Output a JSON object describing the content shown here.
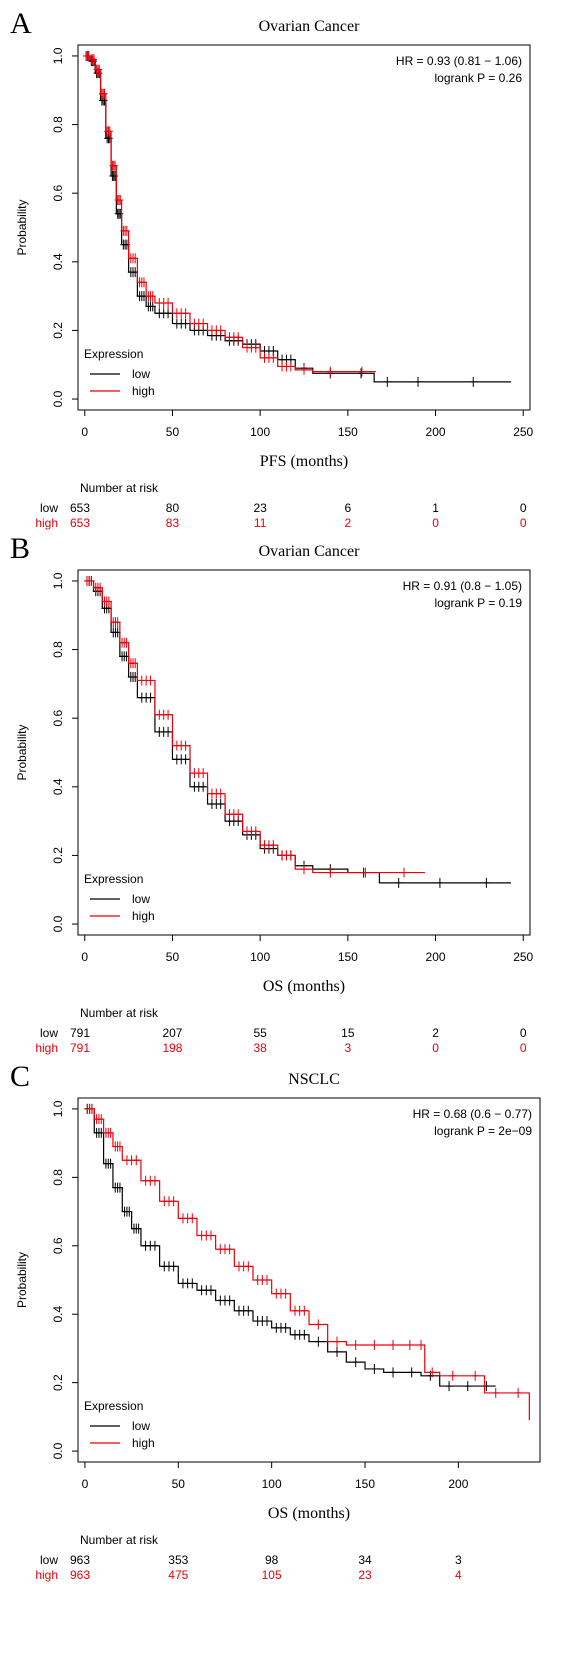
{
  "colors": {
    "low": "#000000",
    "high": "#e8000b"
  },
  "chart_data": [
    {
      "type": "line",
      "panel_label": "A",
      "title": "Ovarian Cancer",
      "xlabel": "PFS (months)",
      "ylabel": "Probability",
      "xlim": [
        0,
        250
      ],
      "ylim": [
        0,
        1
      ],
      "xticks": [
        "0",
        "50",
        "100",
        "150",
        "200",
        "250"
      ],
      "yticks": [
        "0.0",
        "0.2",
        "0.4",
        "0.6",
        "0.8",
        "1.0"
      ],
      "legend_title": "Expression",
      "legend_position": "bottom-left",
      "annotation": [
        "HR = 0.93 (0.81 − 1.06)",
        "logrank P = 0.26"
      ],
      "series": [
        {
          "name": "low",
          "x": [
            0,
            3,
            6,
            9,
            12,
            15,
            18,
            21,
            25,
            30,
            35,
            40,
            50,
            60,
            70,
            80,
            90,
            100,
            110,
            120,
            130,
            150,
            165,
            180,
            200,
            243
          ],
          "y": [
            1.0,
            0.985,
            0.95,
            0.87,
            0.76,
            0.65,
            0.54,
            0.45,
            0.37,
            0.3,
            0.27,
            0.25,
            0.22,
            0.2,
            0.185,
            0.17,
            0.16,
            0.14,
            0.115,
            0.09,
            0.075,
            0.075,
            0.05,
            0.05,
            0.05,
            0.05
          ]
        },
        {
          "name": "high",
          "x": [
            0,
            3,
            6,
            9,
            12,
            15,
            18,
            21,
            25,
            30,
            35,
            40,
            50,
            60,
            70,
            80,
            90,
            100,
            110,
            120,
            130,
            150,
            166
          ],
          "y": [
            1.0,
            0.99,
            0.96,
            0.89,
            0.78,
            0.68,
            0.58,
            0.49,
            0.41,
            0.34,
            0.3,
            0.28,
            0.25,
            0.22,
            0.2,
            0.18,
            0.15,
            0.12,
            0.095,
            0.085,
            0.08,
            0.08,
            0.08
          ]
        }
      ],
      "risk_table": {
        "title": "Number at risk",
        "low": [
          "653",
          "80",
          "23",
          "6",
          "1",
          "0"
        ],
        "high": [
          "653",
          "83",
          "11",
          "2",
          "0",
          "0"
        ]
      }
    },
    {
      "type": "line",
      "panel_label": "B",
      "title": "Ovarian Cancer",
      "xlabel": "OS (months)",
      "ylabel": "Probability",
      "xlim": [
        0,
        250
      ],
      "ylim": [
        0,
        1
      ],
      "xticks": [
        "0",
        "50",
        "100",
        "150",
        "200",
        "250"
      ],
      "yticks": [
        "0.0",
        "0.2",
        "0.4",
        "0.6",
        "0.8",
        "1.0"
      ],
      "legend_title": "Expression",
      "legend_position": "bottom-left",
      "annotation": [
        "HR = 0.91 (0.8 − 1.05)",
        "logrank P = 0.19"
      ],
      "series": [
        {
          "name": "low",
          "x": [
            0,
            5,
            10,
            15,
            20,
            25,
            30,
            40,
            50,
            60,
            70,
            80,
            90,
            100,
            110,
            120,
            130,
            150,
            168,
            190,
            215,
            243
          ],
          "y": [
            1.0,
            0.97,
            0.92,
            0.85,
            0.78,
            0.72,
            0.66,
            0.56,
            0.48,
            0.4,
            0.35,
            0.3,
            0.26,
            0.22,
            0.2,
            0.17,
            0.16,
            0.15,
            0.12,
            0.12,
            0.12,
            0.12
          ]
        },
        {
          "name": "high",
          "x": [
            0,
            5,
            10,
            15,
            20,
            25,
            30,
            40,
            50,
            60,
            70,
            80,
            90,
            100,
            110,
            120,
            130,
            150,
            170,
            194
          ],
          "y": [
            1.0,
            0.98,
            0.94,
            0.88,
            0.82,
            0.76,
            0.71,
            0.61,
            0.52,
            0.44,
            0.38,
            0.32,
            0.27,
            0.23,
            0.2,
            0.16,
            0.15,
            0.15,
            0.15,
            0.15
          ]
        }
      ],
      "risk_table": {
        "title": "Number at risk",
        "low": [
          "791",
          "207",
          "55",
          "15",
          "2",
          "0"
        ],
        "high": [
          "791",
          "198",
          "38",
          "3",
          "0",
          "0"
        ]
      }
    },
    {
      "type": "line",
      "panel_label": "C",
      "title": "NSCLC",
      "xlabel": "OS (months)",
      "ylabel": "Probability",
      "xlim": [
        0,
        240
      ],
      "ylim": [
        0,
        1
      ],
      "xticks": [
        "0",
        "50",
        "100",
        "150",
        "200"
      ],
      "yticks": [
        "0.0",
        "0.2",
        "0.4",
        "0.6",
        "0.8",
        "1.0"
      ],
      "legend_title": "Expression",
      "legend_position": "bottom-left",
      "annotation": [
        "HR = 0.68 (0.6 − 0.77)",
        "logrank P = 2e−09"
      ],
      "series": [
        {
          "name": "low",
          "x": [
            0,
            5,
            10,
            15,
            20,
            25,
            30,
            40,
            50,
            60,
            70,
            80,
            90,
            100,
            110,
            120,
            130,
            140,
            150,
            160,
            170,
            180,
            190,
            200,
            210,
            220
          ],
          "y": [
            1.0,
            0.93,
            0.84,
            0.77,
            0.7,
            0.65,
            0.6,
            0.54,
            0.49,
            0.47,
            0.44,
            0.41,
            0.38,
            0.36,
            0.34,
            0.32,
            0.29,
            0.26,
            0.24,
            0.23,
            0.23,
            0.22,
            0.19,
            0.19,
            0.19,
            0.19
          ]
        },
        {
          "name": "high",
          "x": [
            0,
            5,
            10,
            15,
            20,
            30,
            40,
            50,
            60,
            70,
            80,
            90,
            100,
            110,
            120,
            130,
            140,
            150,
            160,
            170,
            178,
            182,
            190,
            204,
            214,
            226,
            238
          ],
          "y": [
            1.0,
            0.97,
            0.93,
            0.89,
            0.85,
            0.79,
            0.73,
            0.68,
            0.63,
            0.59,
            0.54,
            0.5,
            0.46,
            0.41,
            0.37,
            0.32,
            0.31,
            0.31,
            0.31,
            0.31,
            0.31,
            0.23,
            0.22,
            0.22,
            0.17,
            0.17,
            0.09
          ]
        }
      ],
      "risk_table": {
        "title": "Number at risk",
        "low": [
          "963",
          "353",
          "98",
          "34",
          "3"
        ],
        "high": [
          "963",
          "475",
          "105",
          "23",
          "4"
        ]
      }
    }
  ]
}
